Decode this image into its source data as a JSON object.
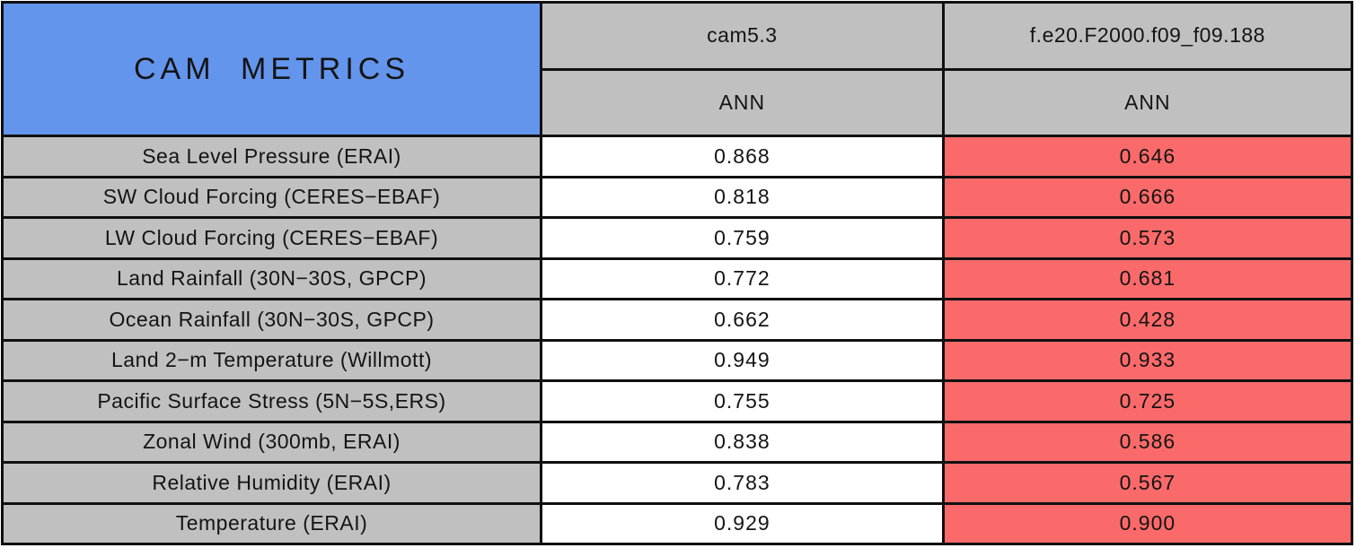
{
  "title": "CAM METRICS",
  "colors": {
    "title_bg": "#6495ED",
    "header_bg": "#C0C0C0",
    "label_bg": "#C0C0C0",
    "ref_value_bg": "#FFFFFF",
    "test_value_bg": "#FB6A6A",
    "border": "#101010",
    "text": "#141414"
  },
  "columns": [
    {
      "model": "cam5.3",
      "season": "ANN"
    },
    {
      "model": "f.e20.F2000.f09_f09.188",
      "season": "ANN"
    }
  ],
  "rows": [
    {
      "label": "Sea Level Pressure (ERAI)",
      "cam53": "0.868",
      "fe20": "0.646"
    },
    {
      "label": "SW Cloud Forcing (CERES−EBAF)",
      "cam53": "0.818",
      "fe20": "0.666"
    },
    {
      "label": "LW Cloud Forcing (CERES−EBAF)",
      "cam53": "0.759",
      "fe20": "0.573"
    },
    {
      "label": "Land Rainfall (30N−30S, GPCP)",
      "cam53": "0.772",
      "fe20": "0.681"
    },
    {
      "label": "Ocean Rainfall (30N−30S, GPCP)",
      "cam53": "0.662",
      "fe20": "0.428"
    },
    {
      "label": "Land 2−m Temperature (Willmott)",
      "cam53": "0.949",
      "fe20": "0.933"
    },
    {
      "label": "Pacific Surface Stress (5N−5S,ERS)",
      "cam53": "0.755",
      "fe20": "0.725"
    },
    {
      "label": "Zonal Wind (300mb, ERAI)",
      "cam53": "0.838",
      "fe20": "0.586"
    },
    {
      "label": "Relative Humidity (ERAI)",
      "cam53": "0.783",
      "fe20": "0.567"
    },
    {
      "label": "Temperature (ERAI)",
      "cam53": "0.929",
      "fe20": "0.900"
    }
  ],
  "chart_data": {
    "type": "table",
    "title": "CAM METRICS",
    "categories": [
      "Sea Level Pressure (ERAI)",
      "SW Cloud Forcing (CERES-EBAF)",
      "LW Cloud Forcing (CERES-EBAF)",
      "Land Rainfall (30N-30S, GPCP)",
      "Ocean Rainfall (30N-30S, GPCP)",
      "Land 2-m Temperature (Willmott)",
      "Pacific Surface Stress (5N-5S,ERS)",
      "Zonal Wind (300mb, ERAI)",
      "Relative Humidity (ERAI)",
      "Temperature (ERAI)"
    ],
    "series": [
      {
        "name": "cam5.3 ANN",
        "values": [
          0.868,
          0.818,
          0.759,
          0.772,
          0.662,
          0.949,
          0.755,
          0.838,
          0.783,
          0.929
        ]
      },
      {
        "name": "f.e20.F2000.f09_f09.188 ANN",
        "values": [
          0.646,
          0.666,
          0.573,
          0.681,
          0.428,
          0.933,
          0.725,
          0.586,
          0.567,
          0.9
        ]
      }
    ],
    "layout_hints": {
      "first_column": "metric names on gray background",
      "cam5.3_cells": "white background",
      "f.e20_cells": "red background (lower skill scores than cam5.3)"
    }
  }
}
